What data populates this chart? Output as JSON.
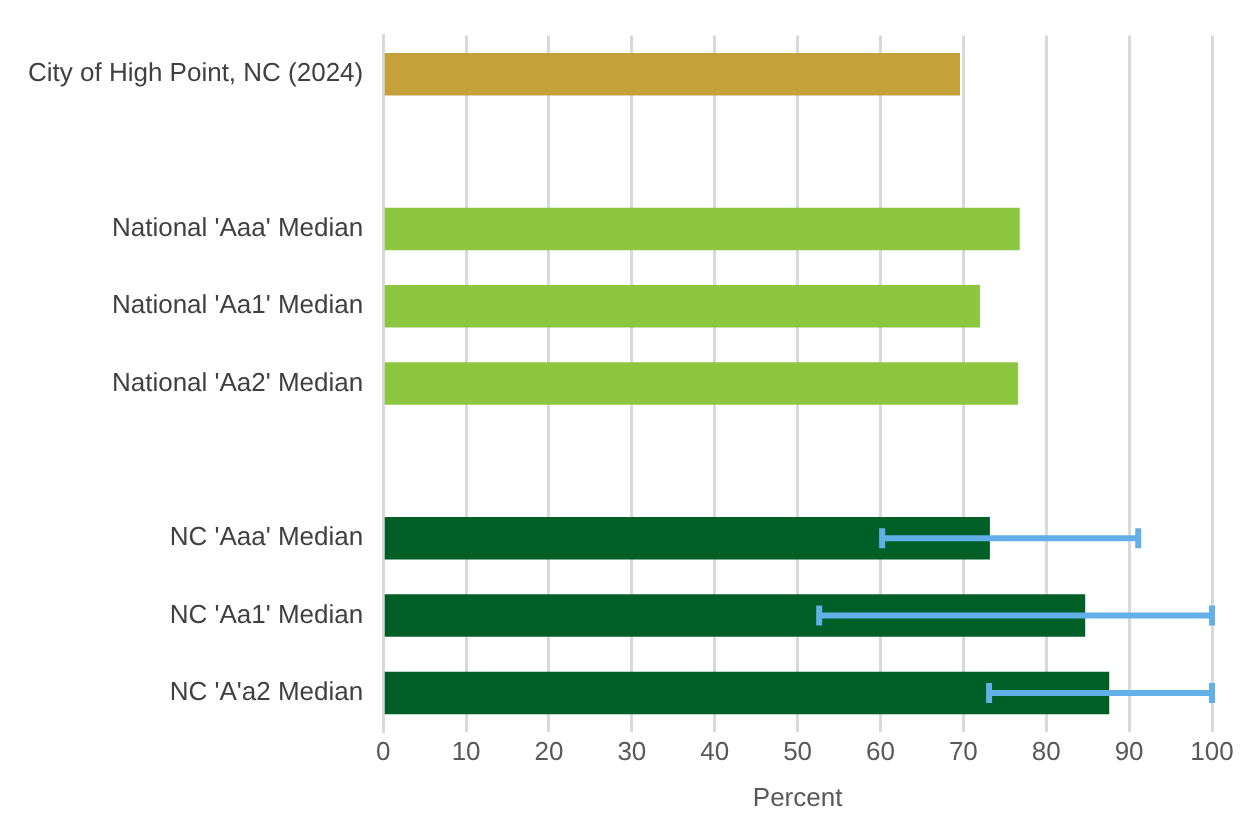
{
  "chart_data": {
    "type": "bar",
    "orientation": "horizontal",
    "xlabel": "Percent",
    "categories": [
      "City of High Point, NC (2024)",
      null,
      "National 'Aaa' Median",
      "National 'Aa1' Median",
      "National 'Aa2' Median",
      null,
      "NC 'Aaa' Median",
      "NC 'Aa1' Median",
      "NC 'A'a2 Median"
    ],
    "values": [
      69.6,
      null,
      76.8,
      72.0,
      76.6,
      null,
      73.2,
      84.7,
      87.6
    ],
    "colors": [
      "#c5a13b",
      null,
      "#8dc641",
      "#8dc641",
      "#8dc641",
      null,
      "#005f26",
      "#005f26",
      "#005f26"
    ],
    "errors": [
      null,
      null,
      null,
      null,
      null,
      null,
      [
        60.2,
        91.1
      ],
      [
        52.6,
        100
      ],
      [
        73.1,
        100
      ]
    ],
    "xlim": [
      0,
      100
    ],
    "xticks": [
      0,
      10,
      20,
      30,
      40,
      50,
      60,
      70,
      80,
      90,
      100
    ],
    "grid": "x",
    "legend": false
  }
}
